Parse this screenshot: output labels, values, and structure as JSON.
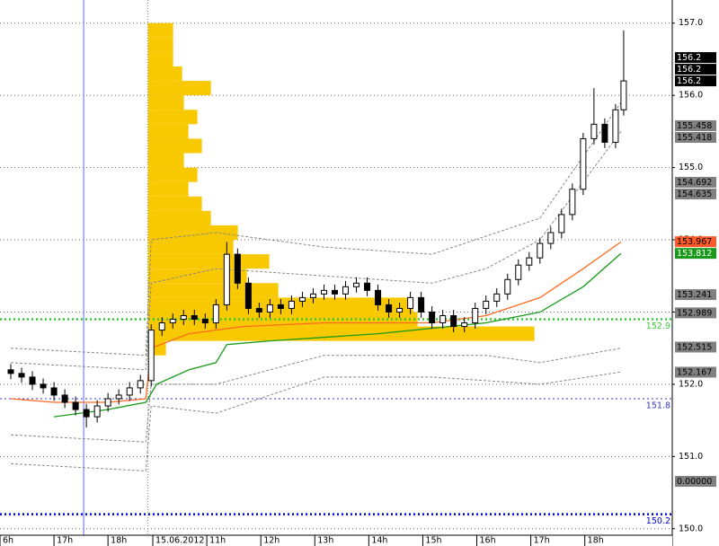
{
  "chart_data": {
    "type": "candlestick",
    "xlim": [
      0,
      12.45
    ],
    "ylim": [
      149.91,
      157.32
    ],
    "xticks": [
      {
        "value": 0,
        "label": "6h"
      },
      {
        "value": 1,
        "label": "17h"
      },
      {
        "value": 2,
        "label": "18h"
      },
      {
        "value": 2.83,
        "label": "15.06.2012"
      },
      {
        "value": 3.83,
        "label": "11h"
      },
      {
        "value": 4.83,
        "label": "12h"
      },
      {
        "value": 5.83,
        "label": "13h"
      },
      {
        "value": 6.83,
        "label": "14h"
      },
      {
        "value": 7.83,
        "label": "15h"
      },
      {
        "value": 8.83,
        "label": "16h"
      },
      {
        "value": 9.83,
        "label": "17h"
      },
      {
        "value": 10.83,
        "label": "18h"
      }
    ],
    "yticks": [
      {
        "value": 150,
        "label": "150.0"
      },
      {
        "value": 151,
        "label": "151.0"
      },
      {
        "value": 152,
        "label": "152.0"
      },
      {
        "value": 153,
        "label": "153.0"
      },
      {
        "value": 154,
        "label": "154.0"
      },
      {
        "value": 155,
        "label": "155.0"
      },
      {
        "value": 156,
        "label": "156.0"
      },
      {
        "value": 157,
        "label": "157.0"
      }
    ],
    "grid": true,
    "x": [
      0.2,
      0.4,
      0.6,
      0.8,
      1.0,
      1.2,
      1.4,
      1.6,
      1.8,
      2.0,
      2.2,
      2.4,
      2.6,
      2.8,
      3.0,
      3.2,
      3.4,
      3.6,
      3.8,
      4.0,
      4.2,
      4.4,
      4.6,
      4.8,
      5.0,
      5.2,
      5.4,
      5.6,
      5.8,
      6.0,
      6.2,
      6.4,
      6.6,
      6.8,
      7.0,
      7.2,
      7.4,
      7.6,
      7.8,
      8.0,
      8.2,
      8.4,
      8.6,
      8.8,
      9.0,
      9.2,
      9.4,
      9.6,
      9.8,
      10.0,
      10.2,
      10.4,
      10.6,
      10.8,
      11.0,
      11.2,
      11.4,
      11.55
    ],
    "open": [
      152.2,
      152.15,
      152.1,
      152.0,
      151.95,
      151.85,
      151.75,
      151.65,
      151.55,
      151.7,
      151.8,
      151.85,
      151.95,
      152.05,
      152.75,
      152.85,
      152.9,
      152.95,
      152.9,
      152.85,
      153.1,
      153.8,
      153.4,
      153.05,
      153.0,
      153.1,
      153.05,
      153.15,
      153.2,
      153.25,
      153.3,
      153.25,
      153.35,
      153.4,
      153.3,
      153.1,
      153.0,
      153.05,
      153.2,
      153.0,
      152.85,
      152.95,
      152.8,
      152.85,
      153.05,
      153.15,
      153.25,
      153.45,
      153.65,
      153.75,
      153.95,
      154.1,
      154.35,
      154.7,
      155.4,
      155.6,
      155.35,
      155.8
    ],
    "high": [
      152.28,
      152.23,
      152.18,
      152.08,
      152.03,
      151.93,
      151.83,
      151.73,
      151.78,
      151.88,
      151.93,
      152.03,
      152.13,
      152.83,
      152.93,
      152.98,
      153.03,
      153.03,
      152.98,
      153.18,
      153.97,
      153.88,
      153.48,
      153.13,
      153.18,
      153.18,
      153.23,
      153.28,
      153.33,
      153.38,
      153.38,
      153.43,
      153.48,
      153.48,
      153.38,
      153.18,
      153.13,
      153.28,
      153.28,
      153.08,
      153.03,
      153.03,
      152.93,
      153.13,
      153.23,
      153.33,
      153.53,
      153.73,
      153.83,
      154.03,
      154.18,
      154.43,
      154.78,
      155.48,
      156.1,
      155.68,
      155.88,
      156.9
    ],
    "low": [
      152.07,
      152.02,
      151.92,
      151.87,
      151.77,
      151.67,
      151.57,
      151.4,
      151.47,
      151.62,
      151.72,
      151.77,
      151.87,
      151.97,
      152.67,
      152.77,
      152.82,
      152.82,
      152.77,
      152.77,
      153.02,
      153.32,
      152.97,
      152.92,
      152.92,
      152.97,
      152.97,
      153.07,
      153.12,
      153.17,
      153.17,
      153.17,
      153.27,
      153.22,
      153.02,
      152.92,
      152.92,
      152.97,
      152.92,
      152.77,
      152.77,
      152.72,
      152.72,
      152.77,
      152.97,
      153.07,
      153.17,
      153.37,
      153.57,
      153.67,
      153.87,
      154.02,
      154.27,
      154.62,
      155.32,
      155.27,
      155.27,
      155.72
    ],
    "close": [
      152.15,
      152.1,
      152.0,
      151.95,
      151.85,
      151.75,
      151.65,
      151.55,
      151.7,
      151.8,
      151.85,
      151.95,
      152.05,
      152.75,
      152.85,
      152.9,
      152.95,
      152.9,
      152.85,
      153.1,
      153.8,
      153.4,
      153.05,
      153.0,
      153.1,
      153.05,
      153.15,
      153.2,
      153.25,
      153.3,
      153.25,
      153.35,
      153.4,
      153.3,
      153.1,
      153.0,
      153.05,
      153.2,
      153.0,
      152.85,
      152.95,
      152.8,
      152.85,
      153.05,
      153.15,
      153.25,
      153.45,
      153.65,
      153.75,
      153.95,
      154.1,
      154.35,
      154.7,
      155.4,
      155.6,
      155.35,
      155.8,
      156.2
    ],
    "candle_colors": {
      "up": "#ffffff",
      "down": "#000000",
      "outline": "#000000"
    },
    "lines": [
      {
        "color": "#888888",
        "dashed": true,
        "x": [
          0.2,
          2.7,
          2.8,
          4.0,
          6.0,
          8.0,
          10.0,
          11.5
        ],
        "values": [
          152.5,
          152.4,
          154.0,
          154.1,
          153.9,
          153.8,
          154.3,
          155.9
        ]
      },
      {
        "color": "#888888",
        "dashed": true,
        "x": [
          0.2,
          2.7,
          2.8,
          4.0,
          6.0,
          8.0,
          9.0,
          10.0,
          11.5
        ],
        "values": [
          152.3,
          152.2,
          153.4,
          153.6,
          153.5,
          153.4,
          153.6,
          154.0,
          155.5
        ]
      },
      {
        "color": "#888888",
        "dashed": true,
        "x": [
          0.2,
          2.7,
          2.8,
          4.0,
          6.0,
          8.0,
          9.0,
          10.0,
          11.5
        ],
        "values": [
          151.3,
          151.2,
          152.0,
          152.0,
          152.4,
          152.4,
          152.4,
          152.3,
          152.5
        ]
      },
      {
        "color": "#888888",
        "dashed": true,
        "x": [
          0.2,
          2.7,
          2.8,
          4.0,
          6.0,
          8.0,
          10.0,
          11.5
        ],
        "values": [
          150.9,
          150.8,
          151.7,
          151.6,
          152.1,
          152.1,
          152.0,
          152.17
        ]
      },
      {
        "color": "#ff6a20",
        "dashed": false,
        "x": [
          0.2,
          1.0,
          2.0,
          2.7,
          2.8,
          3.5,
          4.5,
          6.0,
          8.0,
          9.0,
          10.0,
          10.8,
          11.5
        ],
        "values": [
          151.8,
          151.75,
          151.75,
          151.8,
          152.5,
          152.7,
          152.8,
          152.85,
          152.85,
          152.95,
          153.2,
          153.6,
          153.97
        ]
      },
      {
        "color": "#1a9a1a",
        "dashed": false,
        "x": [
          1.0,
          2.0,
          2.7,
          2.9,
          3.5,
          4.0,
          4.2,
          5.0,
          7.0,
          9.0,
          10.0,
          10.8,
          11.5
        ],
        "values": [
          151.55,
          151.65,
          151.75,
          152.0,
          152.2,
          152.3,
          152.55,
          152.6,
          152.7,
          152.85,
          153.0,
          153.35,
          153.81
        ]
      }
    ],
    "profile": {
      "color": "#f8c800",
      "x_start": 2.74,
      "levels": [
        156.9,
        156.7,
        156.5,
        156.3,
        156.1,
        155.9,
        155.7,
        155.5,
        155.3,
        155.1,
        154.9,
        154.7,
        154.5,
        154.3,
        154.1,
        153.9,
        153.7,
        153.5,
        153.3,
        153.1,
        152.9,
        152.7,
        152.5
      ],
      "volumes": [
        28,
        28,
        28,
        38,
        70,
        40,
        55,
        45,
        60,
        40,
        55,
        45,
        60,
        70,
        100,
        95,
        135,
        110,
        145,
        295,
        300,
        430,
        20
      ]
    },
    "vlines": [
      {
        "value": 1.55,
        "color": "#9999ff",
        "dashed": false
      },
      {
        "value": 2.74,
        "color": "#888888",
        "dashed": true
      }
    ],
    "levels": [
      {
        "value": 152.9,
        "color": "#33cc33"
      },
      {
        "value": 151.8,
        "color": "#3333cc"
      },
      {
        "value": 150.2,
        "color": "#0000dd"
      }
    ],
    "price_tags": [
      {
        "value": 156.2,
        "color": "#000000",
        "text_color": "#ffffff"
      },
      {
        "value": 156.2,
        "color": "#000000",
        "text_color": "#ffffff"
      },
      {
        "value": 156.2,
        "color": "#000000",
        "text_color": "#ffffff"
      },
      {
        "value": 155.458,
        "color": "#808080",
        "text_color": "#000000"
      },
      {
        "value": 155.418,
        "color": "#808080",
        "text_color": "#000000"
      },
      {
        "value": 154.692,
        "color": "#808080",
        "text_color": "#000000"
      },
      {
        "value": 154.635,
        "color": "#808080",
        "text_color": "#000000"
      },
      {
        "value": 153.967,
        "color": "#ff5a2a",
        "text_color": "#000000"
      },
      {
        "value": 153.812,
        "color": "#1a9a1a",
        "text_color": "#ffffff"
      },
      {
        "value": 153.241,
        "color": "#808080",
        "text_color": "#000000"
      },
      {
        "value": 152.989,
        "color": "#808080",
        "text_color": "#000000"
      },
      {
        "value": 152.515,
        "color": "#808080",
        "text_color": "#000000"
      },
      {
        "value": 152.167,
        "color": "#808080",
        "text_color": "#000000"
      },
      {
        "value": {
          "value": 0,
          "label": "0.00000"
        },
        "color": "#808080",
        "text_color": "#000000"
      }
    ]
  }
}
